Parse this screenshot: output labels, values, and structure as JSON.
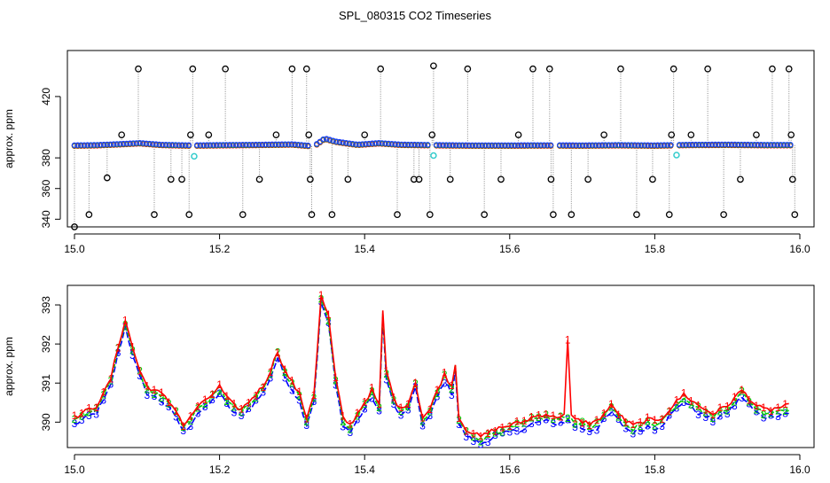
{
  "chart_data": {
    "title": "SPL_080315  CO2 Timeseries",
    "panels": [
      {
        "type": "scatter",
        "ylabel": "approx. ppm",
        "xlabel": "",
        "xlim": [
          15.0,
          16.0
        ],
        "ylim": [
          335,
          450
        ],
        "xticks": [
          15.0,
          15.2,
          15.4,
          15.6,
          15.8,
          16.0
        ],
        "xtick_labels": [
          "15.0",
          "15.2",
          "15.4",
          "15.6",
          "15.8",
          "16.0"
        ],
        "yticks": [
          340,
          360,
          380,
          420
        ],
        "ytick_labels": [
          "340",
          "360",
          "380",
          "420"
        ],
        "baseline": [
          [
            15.0,
            388.0
          ],
          [
            15.03,
            388.2
          ],
          [
            15.06,
            388.8
          ],
          [
            15.09,
            389.5
          ],
          [
            15.12,
            388.4
          ],
          [
            15.16,
            388.0
          ],
          [
            15.2,
            388.2
          ],
          [
            15.25,
            388.4
          ],
          [
            15.3,
            388.7
          ],
          [
            15.33,
            387.5
          ],
          [
            15.345,
            392.5
          ],
          [
            15.36,
            390.5
          ],
          [
            15.39,
            388.5
          ],
          [
            15.42,
            389.5
          ],
          [
            15.45,
            388.5
          ],
          [
            15.5,
            388.2
          ],
          [
            15.55,
            388.0
          ],
          [
            15.6,
            388.0
          ],
          [
            15.65,
            388.1
          ],
          [
            15.7,
            388.0
          ],
          [
            15.75,
            388.2
          ],
          [
            15.8,
            388.0
          ],
          [
            15.85,
            388.4
          ],
          [
            15.9,
            388.5
          ],
          [
            15.95,
            388.3
          ],
          [
            15.99,
            388.3
          ]
        ],
        "gaps": [
          15.165,
          15.33,
          15.495,
          15.665,
          15.83
        ],
        "cyan_points": [
          [
            15.165,
            381.0
          ],
          [
            15.495,
            381.5
          ],
          [
            15.83,
            381.8
          ]
        ],
        "flag_points": [
          [
            15.0,
            335.0
          ],
          [
            15.02,
            343.0
          ],
          [
            15.045,
            367.0
          ],
          [
            15.065,
            395.0
          ],
          [
            15.088,
            438.0
          ],
          [
            15.11,
            343.0
          ],
          [
            15.133,
            366.0
          ],
          [
            15.148,
            366.0
          ],
          [
            15.158,
            343.0
          ],
          [
            15.16,
            395.0
          ],
          [
            15.163,
            438.0
          ],
          [
            15.185,
            395.0
          ],
          [
            15.208,
            438.0
          ],
          [
            15.232,
            343.0
          ],
          [
            15.255,
            366.0
          ],
          [
            15.278,
            395.0
          ],
          [
            15.3,
            438.0
          ],
          [
            15.32,
            438.0
          ],
          [
            15.323,
            395.0
          ],
          [
            15.325,
            366.0
          ],
          [
            15.327,
            343.0
          ],
          [
            15.355,
            343.0
          ],
          [
            15.377,
            366.0
          ],
          [
            15.4,
            395.0
          ],
          [
            15.422,
            438.0
          ],
          [
            15.445,
            343.0
          ],
          [
            15.468,
            366.0
          ],
          [
            15.475,
            366.0
          ],
          [
            15.49,
            343.0
          ],
          [
            15.493,
            395.0
          ],
          [
            15.495,
            440.0
          ],
          [
            15.518,
            366.0
          ],
          [
            15.542,
            438.0
          ],
          [
            15.565,
            343.0
          ],
          [
            15.588,
            366.0
          ],
          [
            15.612,
            395.0
          ],
          [
            15.632,
            438.0
          ],
          [
            15.655,
            438.0
          ],
          [
            15.657,
            366.0
          ],
          [
            15.66,
            343.0
          ],
          [
            15.685,
            343.0
          ],
          [
            15.708,
            366.0
          ],
          [
            15.73,
            395.0
          ],
          [
            15.753,
            438.0
          ],
          [
            15.775,
            343.0
          ],
          [
            15.797,
            366.0
          ],
          [
            15.82,
            343.0
          ],
          [
            15.823,
            395.0
          ],
          [
            15.826,
            438.0
          ],
          [
            15.85,
            395.0
          ],
          [
            15.873,
            438.0
          ],
          [
            15.895,
            343.0
          ],
          [
            15.918,
            366.0
          ],
          [
            15.94,
            395.0
          ],
          [
            15.962,
            438.0
          ],
          [
            15.985,
            438.0
          ],
          [
            15.988,
            395.0
          ],
          [
            15.99,
            366.0
          ],
          [
            15.993,
            343.0
          ]
        ]
      },
      {
        "type": "line",
        "ylabel": "approx. ppm",
        "xlabel": "",
        "xlim": [
          15.0,
          16.0
        ],
        "ylim": [
          389.35,
          393.5
        ],
        "xticks": [
          15.0,
          15.2,
          15.4,
          15.6,
          15.8,
          16.0
        ],
        "xtick_labels": [
          "15.0",
          "15.2",
          "15.4",
          "15.6",
          "15.8",
          "16.0"
        ],
        "yticks": [
          390,
          391,
          392,
          393
        ],
        "ytick_labels": [
          "390",
          "391",
          "392",
          "393"
        ],
        "x_end": 15.985,
        "anchors": [
          [
            15.0,
            390.0
          ],
          [
            15.01,
            390.1
          ],
          [
            15.02,
            390.2
          ],
          [
            15.03,
            390.3
          ],
          [
            15.04,
            390.6
          ],
          [
            15.05,
            391.0
          ],
          [
            15.06,
            391.8
          ],
          [
            15.07,
            392.5
          ],
          [
            15.08,
            391.8
          ],
          [
            15.09,
            391.2
          ],
          [
            15.1,
            390.8
          ],
          [
            15.11,
            390.7
          ],
          [
            15.12,
            390.6
          ],
          [
            15.13,
            390.4
          ],
          [
            15.14,
            390.2
          ],
          [
            15.15,
            389.8
          ],
          [
            15.16,
            390.0
          ],
          [
            15.17,
            390.3
          ],
          [
            15.18,
            390.4
          ],
          [
            15.19,
            390.6
          ],
          [
            15.2,
            390.8
          ],
          [
            15.21,
            390.5
          ],
          [
            15.22,
            390.3
          ],
          [
            15.23,
            390.2
          ],
          [
            15.24,
            390.4
          ],
          [
            15.25,
            390.6
          ],
          [
            15.26,
            390.8
          ],
          [
            15.27,
            391.2
          ],
          [
            15.28,
            391.7
          ],
          [
            15.29,
            391.2
          ],
          [
            15.3,
            390.9
          ],
          [
            15.31,
            390.6
          ],
          [
            15.32,
            390.0
          ],
          [
            15.33,
            390.6
          ],
          [
            15.335,
            391.8
          ],
          [
            15.34,
            393.1
          ],
          [
            15.35,
            392.6
          ],
          [
            15.36,
            391.0
          ],
          [
            15.37,
            390.0
          ],
          [
            15.38,
            389.8
          ],
          [
            15.39,
            390.1
          ],
          [
            15.4,
            390.4
          ],
          [
            15.41,
            390.7
          ],
          [
            15.42,
            390.3
          ],
          [
            15.425,
            392.7
          ],
          [
            15.43,
            391.2
          ],
          [
            15.44,
            390.5
          ],
          [
            15.45,
            390.2
          ],
          [
            15.46,
            390.4
          ],
          [
            15.47,
            390.9
          ],
          [
            15.48,
            390.0
          ],
          [
            15.49,
            390.2
          ],
          [
            15.5,
            390.7
          ],
          [
            15.51,
            391.1
          ],
          [
            15.52,
            390.8
          ],
          [
            15.525,
            391.4
          ],
          [
            15.53,
            390.0
          ],
          [
            15.54,
            389.7
          ],
          [
            15.55,
            389.6
          ],
          [
            15.56,
            389.5
          ],
          [
            15.57,
            389.6
          ],
          [
            15.58,
            389.7
          ],
          [
            15.59,
            389.75
          ],
          [
            15.6,
            389.8
          ],
          [
            15.61,
            389.85
          ],
          [
            15.62,
            389.9
          ],
          [
            15.63,
            390.0
          ],
          [
            15.64,
            390.05
          ],
          [
            15.65,
            390.1
          ],
          [
            15.66,
            390.0
          ],
          [
            15.67,
            390.05
          ],
          [
            15.68,
            390.1
          ],
          [
            15.69,
            389.95
          ],
          [
            15.7,
            389.9
          ],
          [
            15.71,
            389.85
          ],
          [
            15.72,
            389.9
          ],
          [
            15.73,
            390.1
          ],
          [
            15.74,
            390.3
          ],
          [
            15.75,
            390.1
          ],
          [
            15.76,
            389.9
          ],
          [
            15.77,
            389.8
          ],
          [
            15.78,
            389.85
          ],
          [
            15.79,
            389.95
          ],
          [
            15.8,
            389.9
          ],
          [
            15.81,
            390.0
          ],
          [
            15.82,
            390.2
          ],
          [
            15.83,
            390.4
          ],
          [
            15.84,
            390.6
          ],
          [
            15.85,
            390.45
          ],
          [
            15.86,
            390.3
          ],
          [
            15.87,
            390.2
          ],
          [
            15.88,
            390.1
          ],
          [
            15.89,
            390.2
          ],
          [
            15.9,
            390.3
          ],
          [
            15.91,
            390.5
          ],
          [
            15.92,
            390.7
          ],
          [
            15.93,
            390.5
          ],
          [
            15.94,
            390.3
          ],
          [
            15.95,
            390.2
          ],
          [
            15.96,
            390.2
          ],
          [
            15.97,
            390.25
          ],
          [
            15.985,
            390.3
          ]
        ],
        "series": [
          {
            "label": "1",
            "color": "#ff0000",
            "offset": 0.12,
            "spike": [
              15.68,
              392.1
            ]
          },
          {
            "label": "2",
            "color": "#00cc00",
            "offset": 0.05
          },
          {
            "label": "3",
            "color": "#0000ff",
            "offset": -0.06
          }
        ]
      }
    ]
  }
}
